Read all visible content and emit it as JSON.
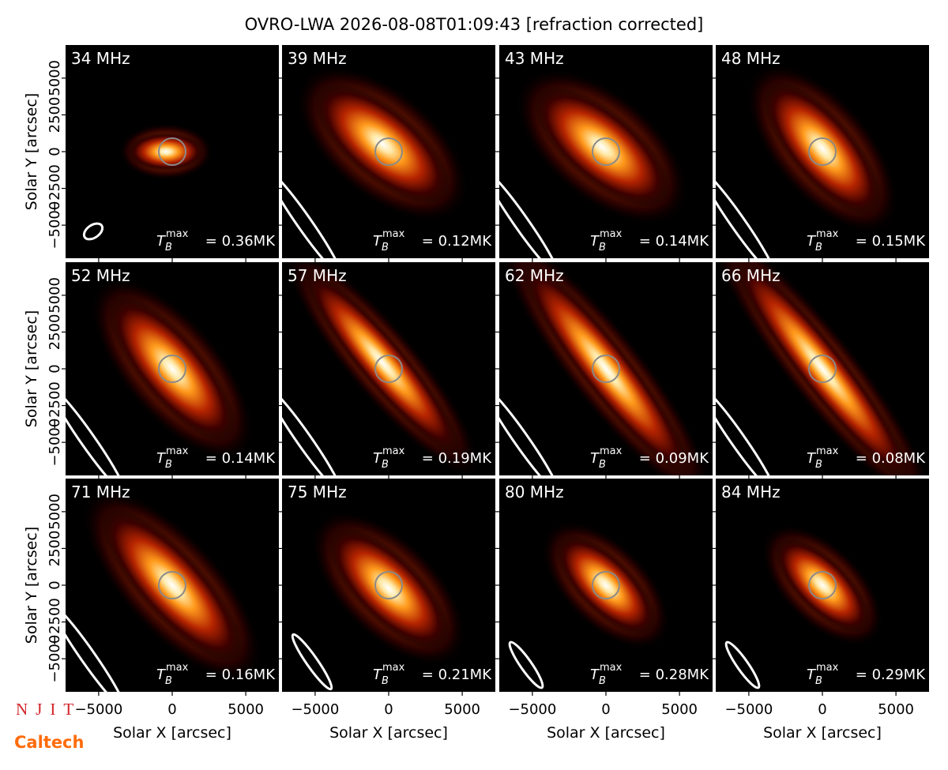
{
  "title": "OVRO-LWA 2026-08-08T01:09:43 [refraction corrected]",
  "x_label": "Solar X [arcsec]",
  "y_label": "Solar Y [arcsec]",
  "tb_symbol": "T",
  "tb_subscript": "B",
  "tb_superscript": "max",
  "logos": [
    "NJIT",
    "Caltech"
  ],
  "chart_data": [
    {
      "type": "image",
      "title": "34 MHz",
      "annotation": "= 0.36MK",
      "xlim": [
        -7250,
        7250
      ],
      "ylim": [
        -7250,
        7250
      ],
      "xticks": [
        {
          "value": -5000,
          "label": "−5000"
        },
        0,
        5000
      ],
      "yticks": [
        {
          "value": -5000,
          "label": "−5000"
        },
        {
          "value": -2500,
          "label": "−2500"
        },
        0,
        2500,
        5000
      ]
    },
    {
      "type": "image",
      "title": "39 MHz",
      "annotation": "= 0.12MK",
      "xlim": [
        -7250,
        7250
      ],
      "ylim": [
        -7250,
        7250
      ],
      "xticks": [
        {
          "value": -5000,
          "label": "−5000"
        },
        0,
        5000
      ],
      "yticks": [
        {
          "value": -5000,
          "label": "−5000"
        },
        {
          "value": -2500,
          "label": "−2500"
        },
        0,
        2500,
        5000
      ]
    },
    {
      "type": "image",
      "title": "43 MHz",
      "annotation": "= 0.14MK",
      "xlim": [
        -7250,
        7250
      ],
      "ylim": [
        -7250,
        7250
      ],
      "xticks": [
        {
          "value": -5000,
          "label": "−5000"
        },
        0,
        5000
      ],
      "yticks": [
        {
          "value": -5000,
          "label": "−5000"
        },
        {
          "value": -2500,
          "label": "−2500"
        },
        0,
        2500,
        5000
      ]
    },
    {
      "type": "image",
      "title": "48 MHz",
      "annotation": "= 0.15MK",
      "xlim": [
        -7250,
        7250
      ],
      "ylim": [
        -7250,
        7250
      ],
      "xticks": [
        {
          "value": -5000,
          "label": "−5000"
        },
        0,
        5000
      ],
      "yticks": [
        {
          "value": -5000,
          "label": "−5000"
        },
        {
          "value": -2500,
          "label": "−2500"
        },
        0,
        2500,
        5000
      ]
    },
    {
      "type": "image",
      "title": "52 MHz",
      "annotation": "= 0.14MK",
      "xlim": [
        -7250,
        7250
      ],
      "ylim": [
        -7250,
        7250
      ],
      "xticks": [
        {
          "value": -5000,
          "label": "−5000"
        },
        0,
        5000
      ],
      "yticks": [
        {
          "value": -5000,
          "label": "−5000"
        },
        {
          "value": -2500,
          "label": "−2500"
        },
        0,
        2500,
        5000
      ]
    },
    {
      "type": "image",
      "title": "57 MHz",
      "annotation": "= 0.19MK",
      "xlim": [
        -7250,
        7250
      ],
      "ylim": [
        -7250,
        7250
      ],
      "xticks": [
        {
          "value": -5000,
          "label": "−5000"
        },
        0,
        5000
      ],
      "yticks": [
        {
          "value": -5000,
          "label": "−5000"
        },
        {
          "value": -2500,
          "label": "−2500"
        },
        0,
        2500,
        5000
      ]
    },
    {
      "type": "image",
      "title": "62 MHz",
      "annotation": "= 0.09MK",
      "xlim": [
        -7250,
        7250
      ],
      "ylim": [
        -7250,
        7250
      ],
      "xticks": [
        {
          "value": -5000,
          "label": "−5000"
        },
        0,
        5000
      ],
      "yticks": [
        {
          "value": -5000,
          "label": "−5000"
        },
        {
          "value": -2500,
          "label": "−2500"
        },
        0,
        2500,
        5000
      ]
    },
    {
      "type": "image",
      "title": "66 MHz",
      "annotation": "= 0.08MK",
      "xlim": [
        -7250,
        7250
      ],
      "ylim": [
        -7250,
        7250
      ],
      "xticks": [
        {
          "value": -5000,
          "label": "−5000"
        },
        0,
        5000
      ],
      "yticks": [
        {
          "value": -5000,
          "label": "−5000"
        },
        {
          "value": -2500,
          "label": "−2500"
        },
        0,
        2500,
        5000
      ]
    },
    {
      "type": "image",
      "title": "71 MHz",
      "annotation": "= 0.16MK",
      "xlim": [
        -7250,
        7250
      ],
      "ylim": [
        -7250,
        7250
      ],
      "xticks": [
        {
          "value": -5000,
          "label": "−5000"
        },
        0,
        5000
      ],
      "yticks": [
        {
          "value": -5000,
          "label": "−5000"
        },
        {
          "value": -2500,
          "label": "−2500"
        },
        0,
        2500,
        5000
      ]
    },
    {
      "type": "image",
      "title": "75 MHz",
      "annotation": "= 0.21MK",
      "xlim": [
        -7250,
        7250
      ],
      "ylim": [
        -7250,
        7250
      ],
      "xticks": [
        {
          "value": -5000,
          "label": "−5000"
        },
        0,
        5000
      ],
      "yticks": [
        {
          "value": -5000,
          "label": "−5000"
        },
        {
          "value": -2500,
          "label": "−2500"
        },
        0,
        2500,
        5000
      ]
    },
    {
      "type": "image",
      "title": "80 MHz",
      "annotation": "= 0.28MK",
      "xlim": [
        -7250,
        7250
      ],
      "ylim": [
        -7250,
        7250
      ],
      "xticks": [
        {
          "value": -5000,
          "label": "−5000"
        },
        0,
        5000
      ],
      "yticks": [
        {
          "value": -5000,
          "label": "−5000"
        },
        {
          "value": -2500,
          "label": "−2500"
        },
        0,
        2500,
        5000
      ]
    },
    {
      "type": "image",
      "title": "84 MHz",
      "annotation": "= 0.29MK",
      "xlim": [
        -7250,
        7250
      ],
      "ylim": [
        -7250,
        7250
      ],
      "xticks": [
        {
          "value": -5000,
          "label": "−5000"
        },
        0,
        5000
      ],
      "yticks": [
        {
          "value": -5000,
          "label": "−5000"
        },
        {
          "value": -2500,
          "label": "−2500"
        },
        0,
        2500,
        5000
      ]
    }
  ]
}
